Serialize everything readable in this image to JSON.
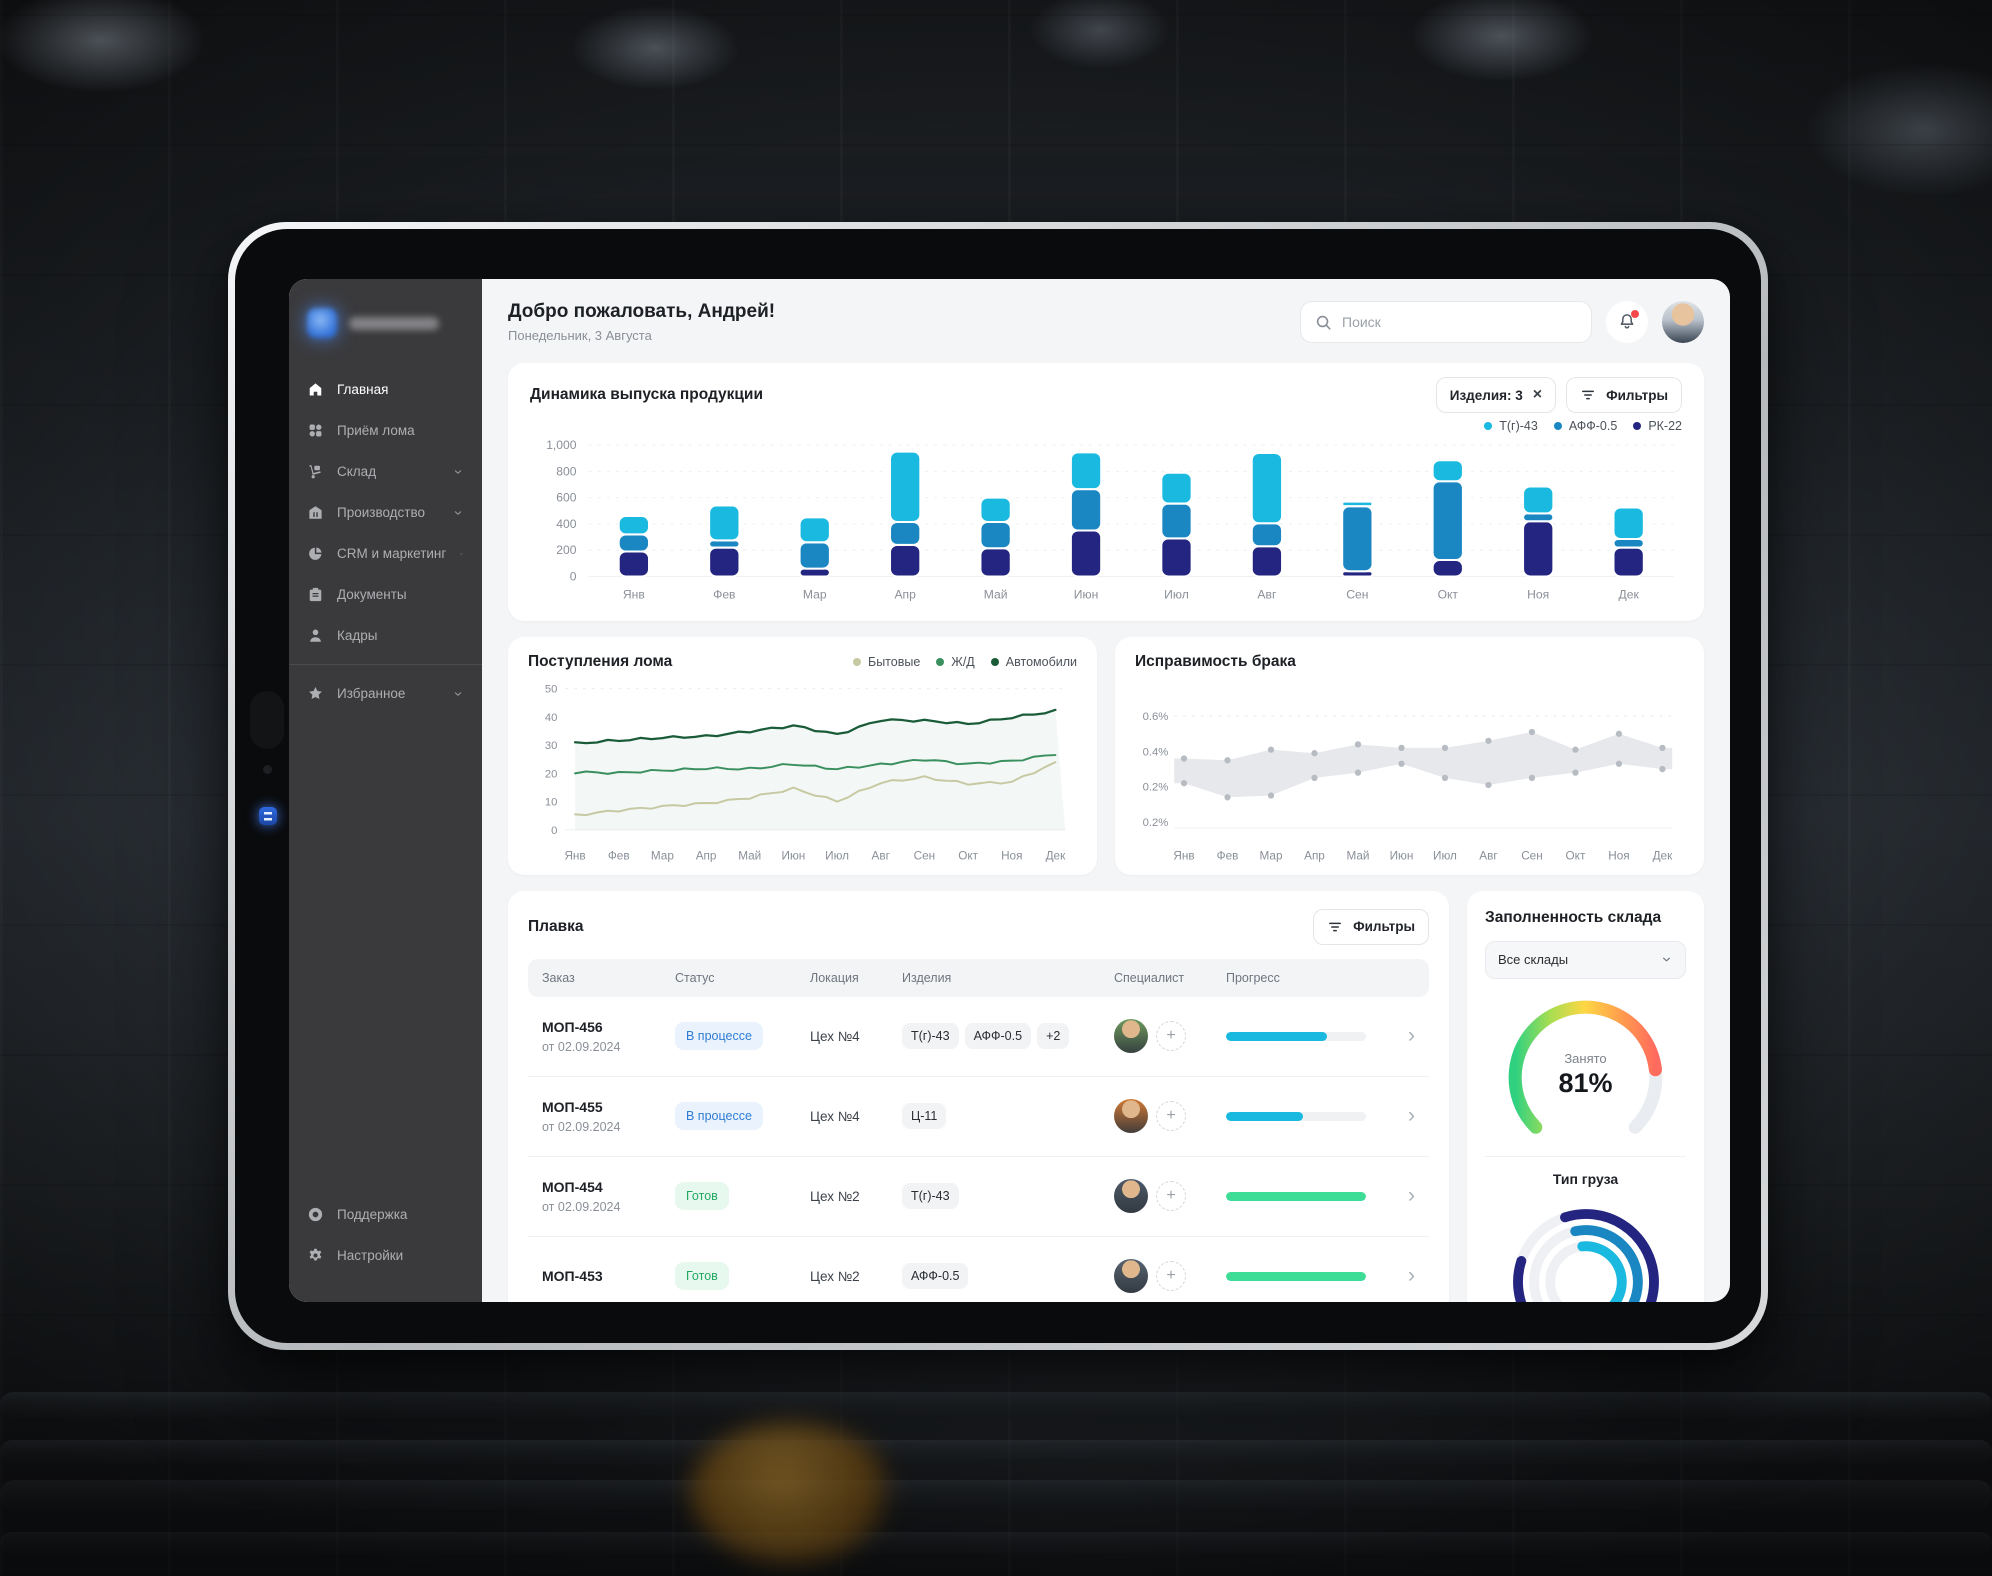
{
  "header": {
    "greeting": "Добро пожаловать, Андрей!",
    "date": "Понедельник, 3 Августа",
    "search_placeholder": "Поиск"
  },
  "sidebar": {
    "items": [
      {
        "label": "Главная",
        "icon": "home-icon",
        "active": true
      },
      {
        "label": "Приём лома",
        "icon": "scrap-intake-icon"
      },
      {
        "label": "Склад",
        "icon": "warehouse-icon",
        "chevron": true
      },
      {
        "label": "Производство",
        "icon": "factory-icon",
        "chevron": true
      },
      {
        "label": "CRM и маркетинг",
        "icon": "crm-pie-icon",
        "chevron": true
      },
      {
        "label": "Документы",
        "icon": "documents-icon"
      },
      {
        "label": "Кадры",
        "icon": "people-icon"
      }
    ],
    "favorites_item": {
      "label": "Избранное",
      "icon": "star-icon",
      "chevron": true
    },
    "bottom_items": [
      {
        "label": "Поддержка",
        "icon": "support-icon"
      },
      {
        "label": "Настройки",
        "icon": "settings-icon"
      }
    ]
  },
  "production_card": {
    "products_chip": "Изделия: 3",
    "filters_label": "Фильтры"
  },
  "melt_card": {
    "title": "Плавка",
    "filters_label": "Фильтры",
    "columns": [
      "Заказ",
      "Статус",
      "Локация",
      "Изделия",
      "Специалист",
      "Прогресс"
    ],
    "rows": [
      {
        "order": "МОП-456",
        "date": "от 02.09.2024",
        "status": "В процессе",
        "status_type": "progress",
        "location": "Цех №4",
        "items": [
          "Т(г)-43",
          "АФФ-0.5",
          "+2"
        ],
        "avatar_color": "#6f9a5f",
        "progress_pct": 72,
        "progress_color": "#19b9e0"
      },
      {
        "order": "МОП-455",
        "date": "от 02.09.2024",
        "status": "В процессе",
        "status_type": "progress",
        "location": "Цех №4",
        "items": [
          "Ц-11"
        ],
        "avatar_color": "#d27a35",
        "progress_pct": 55,
        "progress_color": "#19b9e0"
      },
      {
        "order": "МОП-454",
        "date": "от 02.09.2024",
        "status": "Готов",
        "status_type": "done",
        "location": "Цех №2",
        "items": [
          "Т(г)-43"
        ],
        "avatar_color": "#4e5b68",
        "progress_pct": 100,
        "progress_color": "#3ddc97"
      },
      {
        "order": "МОП-453",
        "status": "Готов",
        "status_type": "done",
        "location": "Цех №2",
        "items": [
          "АФФ-0.5"
        ],
        "avatar_color": "#57636f",
        "progress_pct": 100,
        "progress_color": "#3ddc97"
      }
    ]
  },
  "warehouse_card": {
    "title": "Заполненность склада",
    "select_value": "Все склады"
  },
  "chart_data": [
    {
      "id": "production",
      "type": "bar",
      "stacked": true,
      "title": "Динамика выпуска продукции",
      "categories": [
        "Янв",
        "Фев",
        "Мар",
        "Апр",
        "Май",
        "Июн",
        "Июл",
        "Авг",
        "Сен",
        "Окт",
        "Ноя",
        "Дек"
      ],
      "series": [
        {
          "name": "РК-22",
          "color": "#232580",
          "values": [
            190,
            220,
            60,
            240,
            215,
            350,
            290,
            230,
            40,
            125,
            420,
            220
          ]
        },
        {
          "name": "АФФ-0.5",
          "color": "#1b87c2",
          "values": [
            130,
            55,
            200,
            175,
            200,
            315,
            265,
            175,
            495,
            600,
            60,
            65
          ]
        },
        {
          "name": "Т(г)-43",
          "color": "#19b9e0",
          "values": [
            140,
            265,
            190,
            535,
            185,
            280,
            235,
            535,
            35,
            160,
            205,
            240
          ]
        }
      ],
      "legend": [
        {
          "label": "Т(г)-43",
          "color": "#19b9e0"
        },
        {
          "label": "АФФ-0.5",
          "color": "#1b87c2"
        },
        {
          "label": "РК-22",
          "color": "#232580"
        }
      ],
      "ylim": [
        0,
        1000
      ],
      "yticks": [
        {
          "v": 0,
          "label": "0"
        },
        {
          "v": 200,
          "label": "200"
        },
        {
          "v": 400,
          "label": "400"
        },
        {
          "v": 600,
          "label": "600"
        },
        {
          "v": 800,
          "label": "800"
        },
        {
          "v": 1000,
          "label": "1,000"
        }
      ],
      "grid": "dashed-horizontal",
      "legend_position": "top-right"
    },
    {
      "id": "scrap",
      "type": "line",
      "title": "Поступления лома",
      "categories": [
        "Янв",
        "Фев",
        "Мар",
        "Апр",
        "Май",
        "Июн",
        "Июл",
        "Авг",
        "Сен",
        "Окт",
        "Ноя",
        "Дек"
      ],
      "series": [
        {
          "name": "Бытовые",
          "color": "#c6c9a2",
          "values": [
            5.5,
            6.5,
            8.5,
            9.5,
            11,
            15,
            10,
            16.5,
            19,
            16,
            17,
            24
          ]
        },
        {
          "name": "Ж/Д",
          "color": "#3a8f5f",
          "values": [
            20,
            20.5,
            21,
            21.5,
            22,
            23,
            21.5,
            23.5,
            24.5,
            23.5,
            24.5,
            26.5
          ]
        },
        {
          "name": "Автомобили",
          "color": "#1a5c38",
          "values": [
            31,
            31.5,
            32.5,
            33.5,
            34.5,
            37,
            34,
            38.5,
            39,
            37.5,
            39.5,
            42.5
          ]
        }
      ],
      "legend": [
        {
          "label": "Бытовые",
          "color": "#c6c9a2"
        },
        {
          "label": "Ж/Д",
          "color": "#3a8f5f"
        },
        {
          "label": "Автомобили",
          "color": "#1a5c38"
        }
      ],
      "ylim": [
        0,
        50
      ],
      "yticks": [
        {
          "v": 0,
          "label": "0"
        },
        {
          "v": 10,
          "label": "10"
        },
        {
          "v": 20,
          "label": "20"
        },
        {
          "v": 30,
          "label": "30"
        },
        {
          "v": 40,
          "label": "40"
        },
        {
          "v": 50,
          "label": "50"
        }
      ],
      "legend_position": "top-right"
    },
    {
      "id": "defects",
      "type": "area",
      "title": "Исправимость брака",
      "categories": [
        "Янв",
        "Фев",
        "Мар",
        "Апр",
        "Май",
        "Июн",
        "Июл",
        "Авг",
        "Сен",
        "Окт",
        "Ноя",
        "Дек"
      ],
      "series": [
        {
          "name": "Верхняя граница",
          "values": [
            0.36,
            0.35,
            0.41,
            0.39,
            0.44,
            0.42,
            0.42,
            0.46,
            0.51,
            0.41,
            0.5,
            0.42
          ]
        },
        {
          "name": "Нижняя граница",
          "values": [
            0.22,
            0.14,
            0.15,
            0.25,
            0.28,
            0.33,
            0.25,
            0.21,
            0.25,
            0.28,
            0.33,
            0.3
          ]
        }
      ],
      "band_color": "#e6e8eb",
      "dot_color": "#b7bbc2",
      "ylim": [
        0,
        0.65
      ],
      "ytick_labels": [
        "0.6%",
        "0.4%",
        "0.2%",
        "0.2%"
      ]
    },
    {
      "id": "warehouse-gauge",
      "type": "gauge",
      "label": "Занято",
      "value_pct": 81,
      "value_label": "81%",
      "gradient": [
        "#2fd181",
        "#a8dd52",
        "#ffd644",
        "#ff9e4d",
        "#ff6b5e"
      ],
      "track_color": "#e9ecf0"
    },
    {
      "id": "cargo-rings",
      "type": "rings",
      "title": "Тип груза",
      "rings": [
        {
          "color": "#232580",
          "pct": 85
        },
        {
          "color": "#1b87c2",
          "pct": 64
        },
        {
          "color": "#19b9e0",
          "pct": 55
        }
      ],
      "track_color": "#eef0f3"
    }
  ]
}
